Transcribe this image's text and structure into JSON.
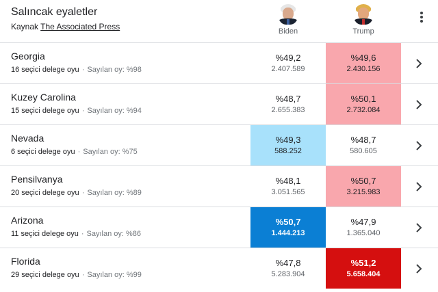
{
  "header": {
    "title": "Salıncak eyaletler",
    "source_prefix": "Kaynak",
    "source_link": "The Associated Press"
  },
  "candidates": [
    {
      "name": "Biden",
      "icon": "biden-avatar-icon",
      "color": "#0b7fd4"
    },
    {
      "name": "Trump",
      "icon": "trump-avatar-icon",
      "color": "#d50f0f"
    }
  ],
  "colors": {
    "biden_lead": "#a8e1fb",
    "biden_called": "#0b7fd4",
    "trump_lead": "#f9a7ad",
    "trump_called": "#d50f0f"
  },
  "rows": [
    {
      "state": "Georgia",
      "electors": "16 seçici delege oyu",
      "counted": "Sayılan oy: %98",
      "biden": {
        "pct": "%49,2",
        "votes": "2.407.589",
        "status": "none"
      },
      "trump": {
        "pct": "%49,6",
        "votes": "2.430.156",
        "status": "lead"
      }
    },
    {
      "state": "Kuzey Carolina",
      "electors": "15 seçici delege oyu",
      "counted": "Sayılan oy: %94",
      "biden": {
        "pct": "%48,7",
        "votes": "2.655.383",
        "status": "none"
      },
      "trump": {
        "pct": "%50,1",
        "votes": "2.732.084",
        "status": "lead"
      }
    },
    {
      "state": "Nevada",
      "electors": "6 seçici delege oyu",
      "counted": "Sayılan oy: %75",
      "biden": {
        "pct": "%49,3",
        "votes": "588.252",
        "status": "lead"
      },
      "trump": {
        "pct": "%48,7",
        "votes": "580.605",
        "status": "none"
      }
    },
    {
      "state": "Pensilvanya",
      "electors": "20 seçici delege oyu",
      "counted": "Sayılan oy: %89",
      "biden": {
        "pct": "%48,1",
        "votes": "3.051.565",
        "status": "none"
      },
      "trump": {
        "pct": "%50,7",
        "votes": "3.215.983",
        "status": "lead"
      }
    },
    {
      "state": "Arizona",
      "electors": "11 seçici delege oyu",
      "counted": "Sayılan oy: %86",
      "biden": {
        "pct": "%50,7",
        "votes": "1.444.213",
        "status": "called"
      },
      "trump": {
        "pct": "%47,9",
        "votes": "1.365.040",
        "status": "none"
      }
    },
    {
      "state": "Florida",
      "electors": "29 seçici delege oyu",
      "counted": "Sayılan oy: %99",
      "biden": {
        "pct": "%47,8",
        "votes": "5.283.904",
        "status": "none"
      },
      "trump": {
        "pct": "%51,2",
        "votes": "5.658.404",
        "status": "called"
      }
    }
  ]
}
